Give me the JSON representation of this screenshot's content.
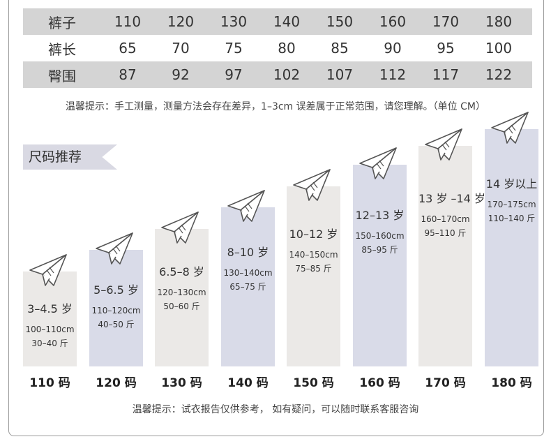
{
  "size_table": {
    "rows": [
      {
        "header": "裤子",
        "values": [
          "110",
          "120",
          "130",
          "140",
          "150",
          "160",
          "170",
          "180"
        ]
      },
      {
        "header": "裤长",
        "values": [
          "65",
          "70",
          "75",
          "80",
          "85",
          "90",
          "95",
          "100"
        ]
      },
      {
        "header": "臀围",
        "values": [
          "87",
          "92",
          "97",
          "102",
          "107",
          "112",
          "117",
          "122"
        ]
      }
    ]
  },
  "tip_measure": "温馨提示：手工测量，测量方法会存在差异，1–3cm 误差属于正常范围，请您理解。（单位 CM）",
  "section_title": "尺码推荐",
  "recommend": [
    {
      "size": "110 码",
      "age": "3–4.5 岁",
      "height": "100–110cm",
      "weight": "30–40 斤",
      "level": 0.4,
      "tone": "light"
    },
    {
      "size": "120 码",
      "age": "5–6.5 岁",
      "height": "110–120cm",
      "weight": "40–50 斤",
      "level": 0.49,
      "tone": "blue"
    },
    {
      "size": "130 码",
      "age": "6.5–8 岁",
      "height": "120–130cm",
      "weight": "50–60 斤",
      "level": 0.58,
      "tone": "light"
    },
    {
      "size": "140 码",
      "age": "8–10 岁",
      "height": "130–140cm",
      "weight": "65–75 斤",
      "level": 0.67,
      "tone": "blue"
    },
    {
      "size": "150 码",
      "age": "10–12 岁",
      "height": "140–150cm",
      "weight": "75–85 斤",
      "level": 0.76,
      "tone": "light"
    },
    {
      "size": "160 码",
      "age": "12–13 岁",
      "height": "150–160cm",
      "weight": "85–95 斤",
      "level": 0.85,
      "tone": "blue"
    },
    {
      "size": "170 码",
      "age": "13 岁 –14 岁",
      "height": "160–170cm",
      "weight": "95–110 斤",
      "level": 0.93,
      "tone": "light"
    },
    {
      "size": "180 码",
      "age": "14 岁以上",
      "height": "170–175cm",
      "weight": "110–140 斤",
      "level": 1.0,
      "tone": "blue"
    }
  ],
  "tip_consult": "温馨提示：试衣报告仅供参考， 如有疑问，可以随时联系客服咨询",
  "colors": {
    "bar_light": "#ebe9e7",
    "bar_blue": "#d9dbe8",
    "table_shade": "#d4d4d4",
    "banner": "#d9d9e3"
  },
  "icons": {
    "bar_top": "paper-plane-icon"
  }
}
